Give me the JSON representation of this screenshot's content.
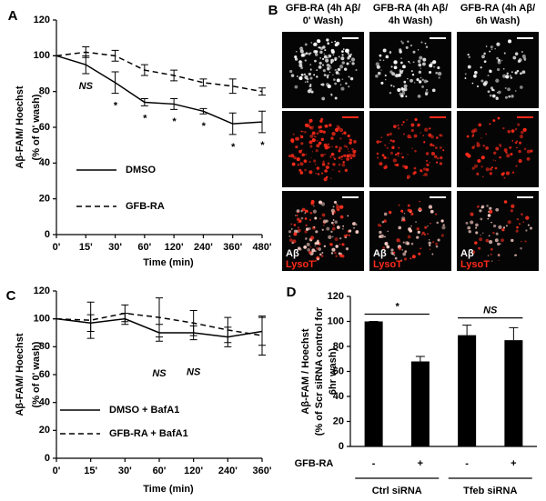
{
  "chart_data": [
    {
      "type": "line",
      "panel_label": "A",
      "categories": [
        "0'",
        "15'",
        "30'",
        "60'",
        "120'",
        "240'",
        "360'",
        "480'"
      ],
      "xlabel": "Time (min)",
      "ylabel": [
        "Aβ-FAM/ Hoechst",
        "(% of 0' wash)"
      ],
      "ylim": [
        0,
        120
      ],
      "yticks": [
        0,
        20,
        40,
        60,
        80,
        100,
        120
      ],
      "legend": "lower left",
      "series": [
        {
          "name": "DMSO",
          "color": "#000000",
          "line_style": "solid",
          "values": [
            100,
            95,
            85,
            74,
            73,
            69,
            62,
            63
          ],
          "errors": [
            0,
            5,
            6,
            2,
            3,
            1.5,
            6,
            6
          ]
        },
        {
          "name": "GFB-RA",
          "color": "#000000",
          "line_style": "dashed",
          "values": [
            100,
            102,
            100,
            92,
            89,
            85,
            83,
            80
          ],
          "errors": [
            0,
            3,
            3,
            3,
            3,
            2,
            4,
            2
          ]
        }
      ],
      "annotations": [
        null,
        "NS",
        "*",
        "*",
        "*",
        "*",
        "*",
        "*"
      ]
    },
    {
      "type": "line",
      "panel_label": "C",
      "categories": [
        "0'",
        "15'",
        "30'",
        "60'",
        "120'",
        "240'",
        "360'"
      ],
      "xlabel": "Time (min)",
      "ylabel": [
        "Aβ-FAM/ Hoechst",
        "(% of 0' wash)"
      ],
      "ylim": [
        0,
        120
      ],
      "yticks": [
        0,
        20,
        40,
        60,
        80,
        100,
        120
      ],
      "legend": "lower left",
      "series": [
        {
          "name": "DMSO + BafA1",
          "color": "#000000",
          "line_style": "solid",
          "values": [
            100,
            97,
            100,
            90,
            90,
            87,
            91
          ],
          "errors": [
            0,
            6,
            4,
            6,
            5,
            7,
            10
          ]
        },
        {
          "name": "GFB-RA + BafA1",
          "color": "#000000",
          "line_style": "dashed",
          "values": [
            100,
            99,
            104,
            101,
            97,
            92,
            88
          ],
          "errors": [
            0,
            13,
            6,
            14,
            9,
            9,
            14
          ]
        }
      ],
      "annotations": [
        null,
        null,
        null,
        "NS",
        "NS",
        null,
        null
      ]
    },
    {
      "type": "bar",
      "panel_label": "D",
      "categories": [
        "-",
        "+",
        "-",
        "+"
      ],
      "row_label": "GFB-RA",
      "group_labels": [
        "Ctrl siRNA",
        "Tfeb siRNA"
      ],
      "ylabel": [
        "Aβ-FAM / Hoechst",
        "(% of Scr siRNA control for",
        "6hr wash)"
      ],
      "ylim": [
        0,
        120
      ],
      "yticks": [
        0,
        20,
        40,
        60,
        80,
        100,
        120
      ],
      "color": "#000000",
      "values": [
        100,
        68,
        89,
        85
      ],
      "errors": [
        0,
        4,
        8,
        10
      ],
      "significance": [
        "*",
        "NS"
      ]
    }
  ],
  "panel_b": {
    "panel_label": "B",
    "columns": [
      [
        "GFB-RA (4h Aβ/",
        "0' Wash)"
      ],
      [
        "GFB-RA (4h Aβ/",
        "4h Wash)"
      ],
      [
        "GFB-RA (4h Aβ/",
        "6h Wash)"
      ]
    ],
    "image_labels": [
      "Aβ",
      "LysoT"
    ]
  }
}
